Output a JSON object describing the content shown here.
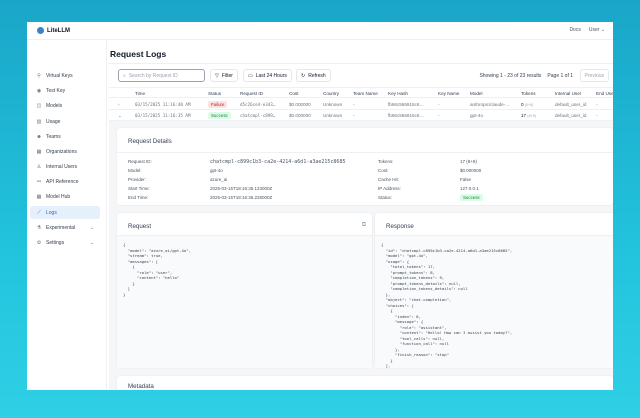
{
  "header": {
    "brand": "LiteLLM",
    "docs": "Docs",
    "user": "User"
  },
  "sidebar": {
    "items": [
      {
        "label": "Virtual Keys",
        "icon": "key-icon"
      },
      {
        "label": "Test Key",
        "icon": "play-circle-icon"
      },
      {
        "label": "Models",
        "icon": "block-icon"
      },
      {
        "label": "Usage",
        "icon": "bar-chart-icon"
      },
      {
        "label": "Teams",
        "icon": "team-icon"
      },
      {
        "label": "Organizations",
        "icon": "bank-icon"
      },
      {
        "label": "Internal Users",
        "icon": "user-icon"
      },
      {
        "label": "API Reference",
        "icon": "api-icon"
      },
      {
        "label": "Model Hub",
        "icon": "appstore-icon"
      },
      {
        "label": "Logs",
        "icon": "line-chart-icon",
        "active": true
      },
      {
        "label": "Experimental",
        "icon": "experiment-icon",
        "expandable": true
      },
      {
        "label": "Settings",
        "icon": "setting-icon",
        "expandable": true
      }
    ]
  },
  "page": {
    "title": "Request Logs"
  },
  "toolbar": {
    "search_placeholder": "Search by Request ID",
    "filter": "Filter",
    "time_range": "Last 24 Hours",
    "refresh": "Refresh",
    "showing": "Showing 1 - 23 of 23 results",
    "page": "Page 1 of 1",
    "previous": "Previous"
  },
  "table": {
    "columns": [
      "Time",
      "Status",
      "Request ID",
      "Cost",
      "Country",
      "Team Name",
      "Key Hash",
      "Key Name",
      "Model",
      "Tokens",
      "Internal User",
      "End User"
    ],
    "rows": [
      {
        "time": "03/15/2025 11:16:40 AM",
        "status": "Failure",
        "request_id": "d5c26ce4-e343…",
        "cost": "$0.000000",
        "country": "Unknown",
        "team": "-",
        "key_hash": "fb66c565915c6…",
        "key_name": "-",
        "model": "anthropic/claude-…",
        "tokens": "0",
        "tokens_detail": "(0+0)",
        "user": "default_user_id",
        "end_user": "-"
      },
      {
        "time": "03/15/2025 11:16:35 AM",
        "status": "Success",
        "request_id": "chatcmpl-c899…",
        "cost": "$0.000000",
        "country": "Unknown",
        "team": "-",
        "key_hash": "fb66c565915c6…",
        "key_name": "-",
        "model": "gpt-4o",
        "tokens": "17",
        "tokens_detail": "(8+9)",
        "user": "default_user_id",
        "end_user": "-"
      }
    ]
  },
  "details": {
    "title": "Request Details",
    "left": [
      {
        "label": "Request ID:",
        "value": "chatcmpl-c899c1b3-ca2e-4214-a6d1-a3ae215c8685"
      },
      {
        "label": "Model:",
        "value": "gpt-4o"
      },
      {
        "label": "Provider:",
        "value": "azure_ai"
      },
      {
        "label": "Start Time:",
        "value": "2025-03-15T18:16:35.123000Z"
      },
      {
        "label": "End Time:",
        "value": "2025-03-15T18:16:36.228000Z"
      }
    ],
    "right": [
      {
        "label": "Tokens:",
        "value": "17 (8+9)"
      },
      {
        "label": "Cost:",
        "value": "$0.000000"
      },
      {
        "label": "Cache Hit:",
        "value": "False"
      },
      {
        "label": "IP Address:",
        "value": "127.0.0.1"
      },
      {
        "label": "Status:",
        "value": "Success"
      }
    ]
  },
  "request": {
    "title": "Request",
    "body": "{\n  \"model\": \"azure_ai/gpt-4o\",\n  \"stream\": true,\n  \"messages\": [\n    {\n      \"role\": \"user\",\n      \"content\": \"hello\"\n    }\n  ]\n}"
  },
  "response": {
    "title": "Response",
    "body": "{\n  \"id\": \"chatcmpl-c899c1b3-ca2e-4214-a6d1-a3ae215c8685\",\n  \"model\": \"gpt-4o\",\n  \"usage\": {\n    \"total_tokens\": 17,\n    \"prompt_tokens\": 8,\n    \"completion_tokens\": 9,\n    \"prompt_tokens_details\": null,\n    \"completion_tokens_details\": null\n  },\n  \"object\": \"chat.completion\",\n  \"choices\": [\n    {\n      \"index\": 0,\n      \"message\": {\n        \"role\": \"assistant\",\n        \"content\": \"Hello! How can I assist you today?\",\n        \"tool_calls\": null,\n        \"function_call\": null\n      },\n      \"finish_reason\": \"stop\"\n    }\n  ],"
  },
  "metadata": {
    "title": "Metadata"
  }
}
